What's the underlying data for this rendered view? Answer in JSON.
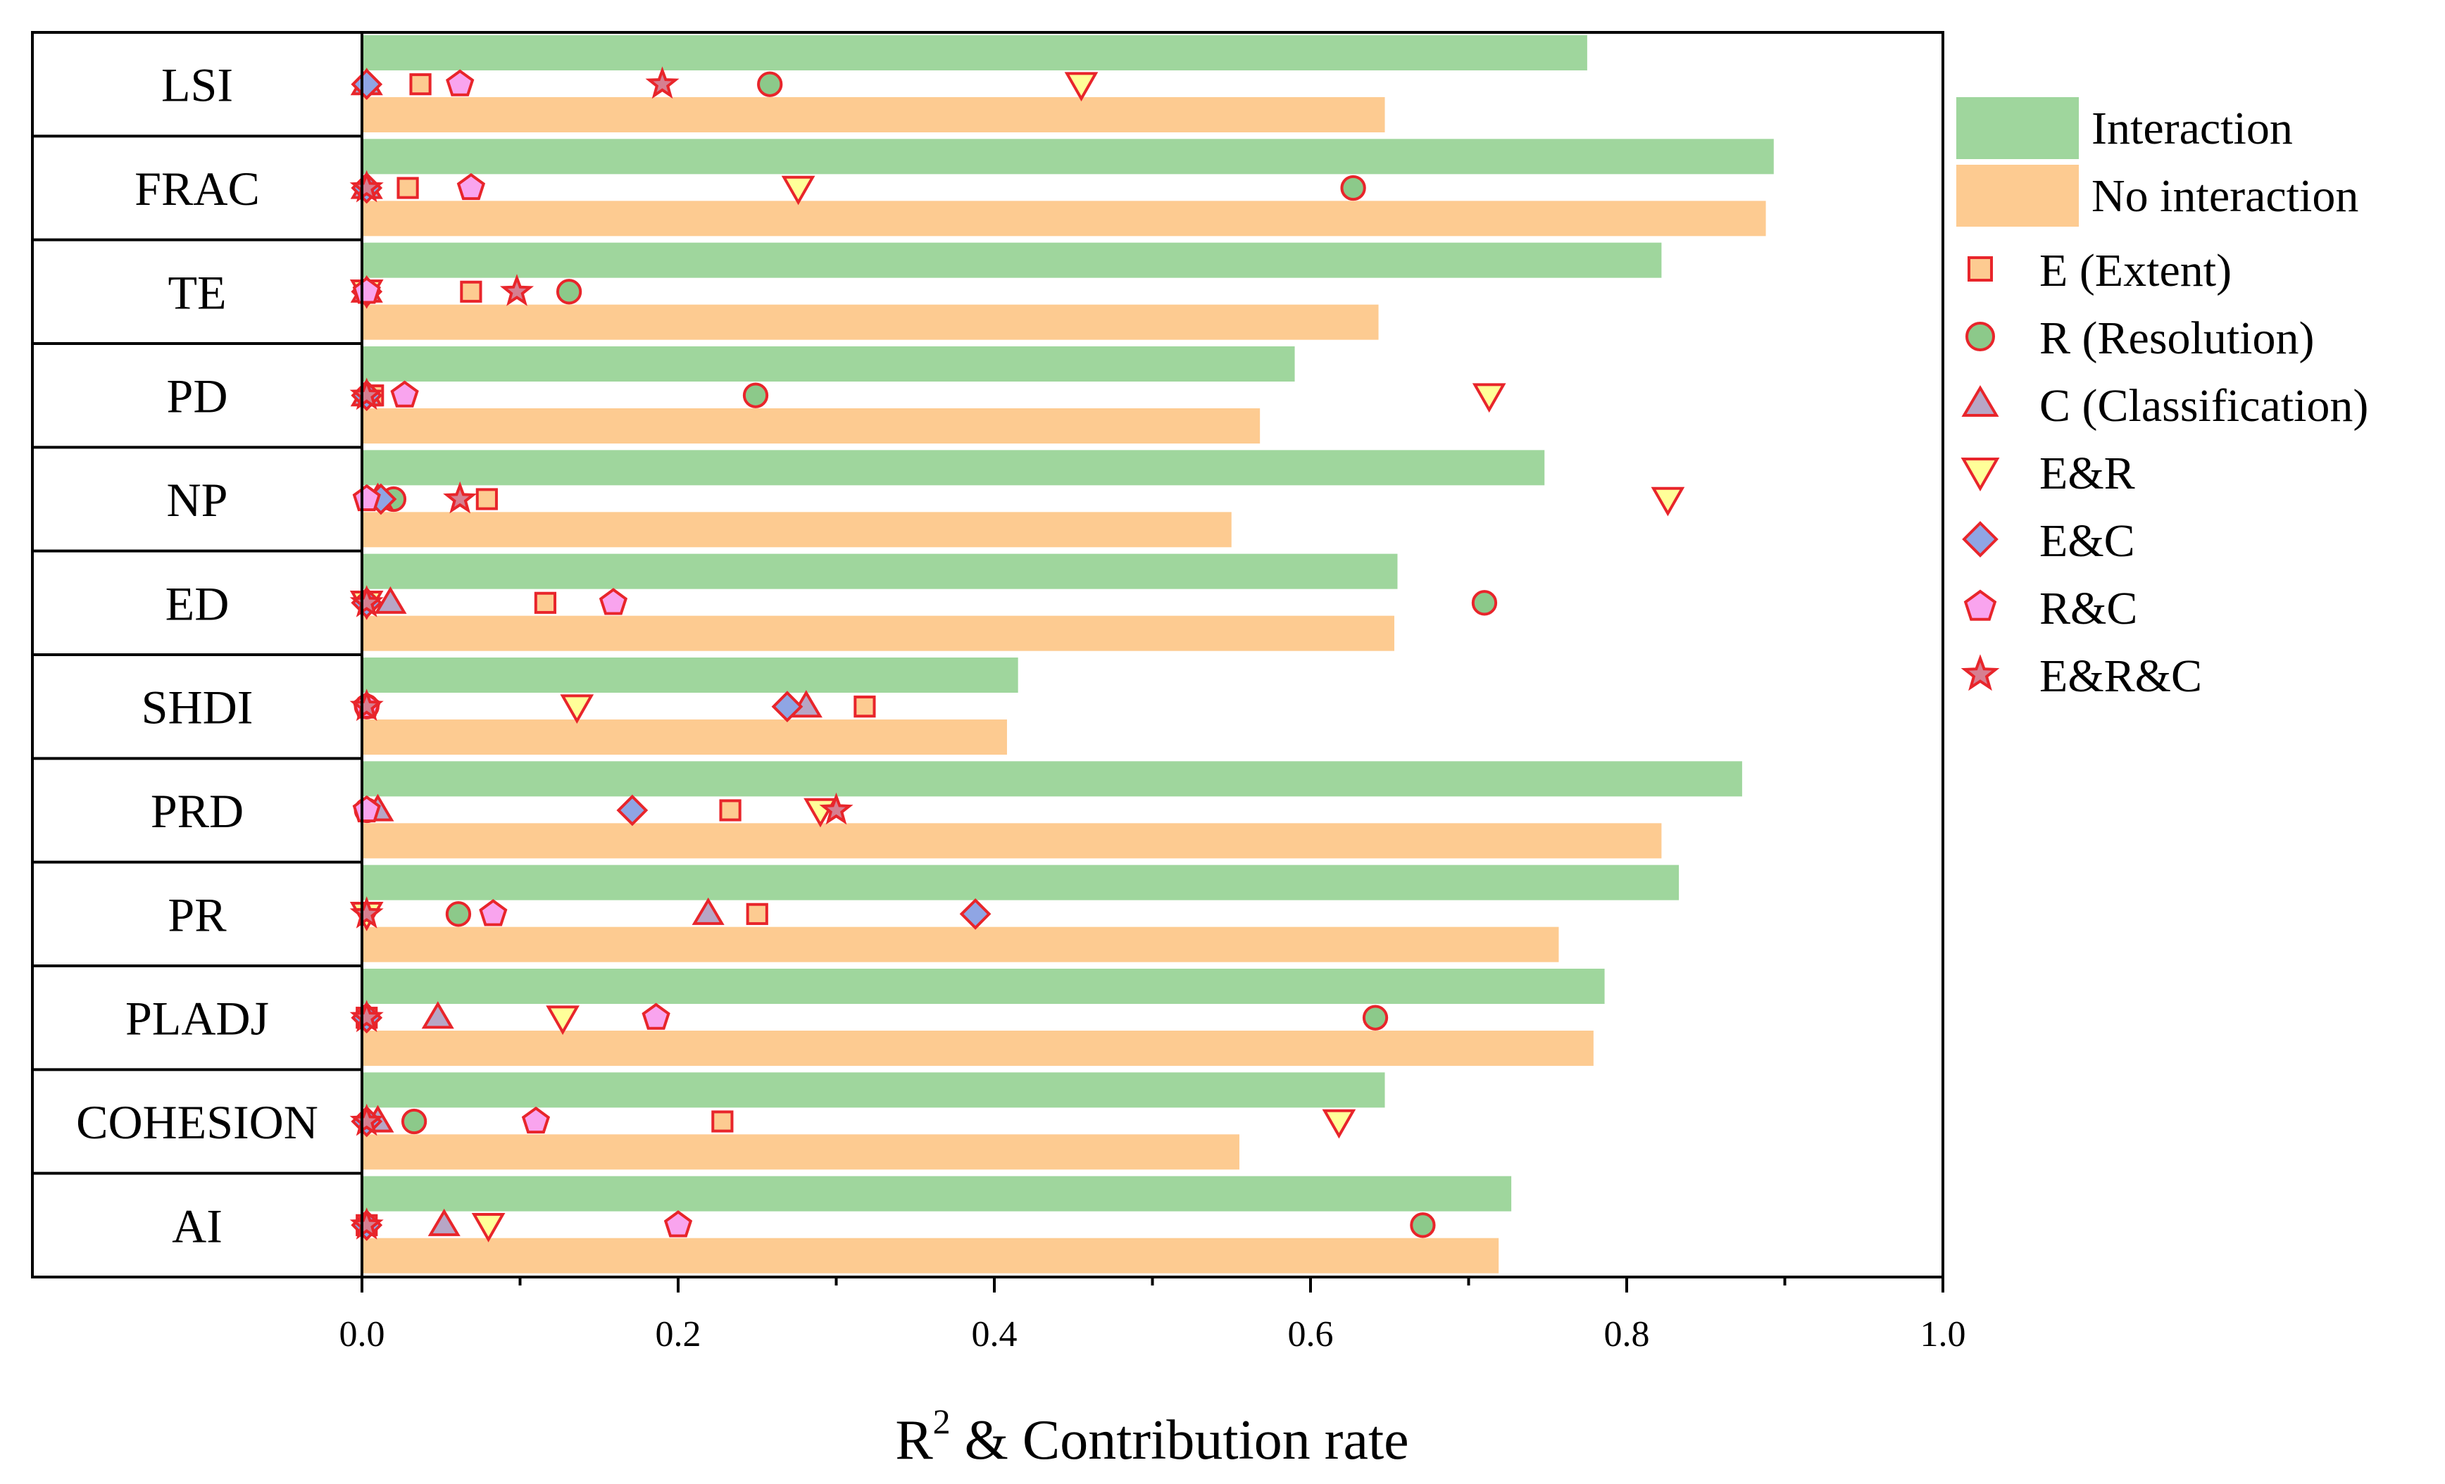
{
  "chart_data": {
    "type": "bar",
    "orientation": "horizontal",
    "categories": [
      "LSI",
      "FRAC",
      "TE",
      "PD",
      "NP",
      "ED",
      "SHDI",
      "PRD",
      "PR",
      "PLADJ",
      "COHESION",
      "AI"
    ],
    "xlabel_main": "R",
    "xlabel_sup": "2",
    "xlabel_rest": " & Contribution rate",
    "xlim": [
      0,
      1.0
    ],
    "xticks": [
      "0.0",
      "0.2",
      "0.4",
      "0.6",
      "0.8",
      "1.0"
    ],
    "bar_series": [
      {
        "name": "Interaction",
        "color": "#9fd69d",
        "values": [
          0.775,
          0.893,
          0.822,
          0.59,
          0.748,
          0.655,
          0.415,
          0.873,
          0.833,
          0.786,
          0.647,
          0.727
        ]
      },
      {
        "name": "No interaction",
        "color": "#fdcb91",
        "values": [
          0.647,
          0.888,
          0.643,
          0.568,
          0.55,
          0.653,
          0.408,
          0.822,
          0.757,
          0.779,
          0.555,
          0.719
        ]
      }
    ],
    "marker_series": [
      {
        "name": "E (Extent)",
        "marker": "square",
        "fill": "#fdcb91",
        "stroke": "#e8252b",
        "values": [
          0.037,
          0.029,
          0.069,
          0.007,
          0.079,
          0.116,
          0.318,
          0.233,
          0.25,
          0.003,
          0.228,
          0.003
        ]
      },
      {
        "name": "R (Resolution)",
        "marker": "circle",
        "fill": "#8cc98a",
        "stroke": "#e8252b",
        "values": [
          0.258,
          0.627,
          0.131,
          0.249,
          0.02,
          0.71,
          0.003,
          0.003,
          0.061,
          0.641,
          0.033,
          0.671
        ]
      },
      {
        "name": "C (Classification)",
        "marker": "triangle-up",
        "fill": "#b7a6c6",
        "stroke": "#e8252b",
        "values": [
          0.003,
          0.003,
          0.003,
          0.003,
          0.01,
          0.018,
          0.281,
          0.01,
          0.219,
          0.048,
          0.01,
          0.052
        ]
      },
      {
        "name": "E&R",
        "marker": "triangle-down",
        "fill": "#ffff99",
        "stroke": "#e8252b",
        "values": [
          0.455,
          0.276,
          0.003,
          0.713,
          0.826,
          0.003,
          0.136,
          0.29,
          0.003,
          0.127,
          0.618,
          0.08
        ]
      },
      {
        "name": "E&C",
        "marker": "diamond",
        "fill": "#8fa5e4",
        "stroke": "#e8252b",
        "values": [
          0.003,
          0.003,
          0.003,
          0.003,
          0.012,
          0.003,
          0.269,
          0.171,
          0.388,
          0.003,
          0.003,
          0.003
        ]
      },
      {
        "name": "R&C",
        "marker": "pentagon",
        "fill": "#f9a4ee",
        "stroke": "#e8252b",
        "values": [
          0.062,
          0.069,
          0.003,
          0.027,
          0.003,
          0.159,
          0.003,
          0.003,
          0.083,
          0.186,
          0.11,
          0.2
        ]
      },
      {
        "name": "E&R&C",
        "marker": "star",
        "fill": "#d67f91",
        "stroke": "#e8252b",
        "values": [
          0.19,
          0.003,
          0.098,
          0.003,
          0.062,
          0.003,
          0.003,
          0.3,
          0.003,
          0.003,
          0.003,
          0.003
        ]
      }
    ]
  }
}
